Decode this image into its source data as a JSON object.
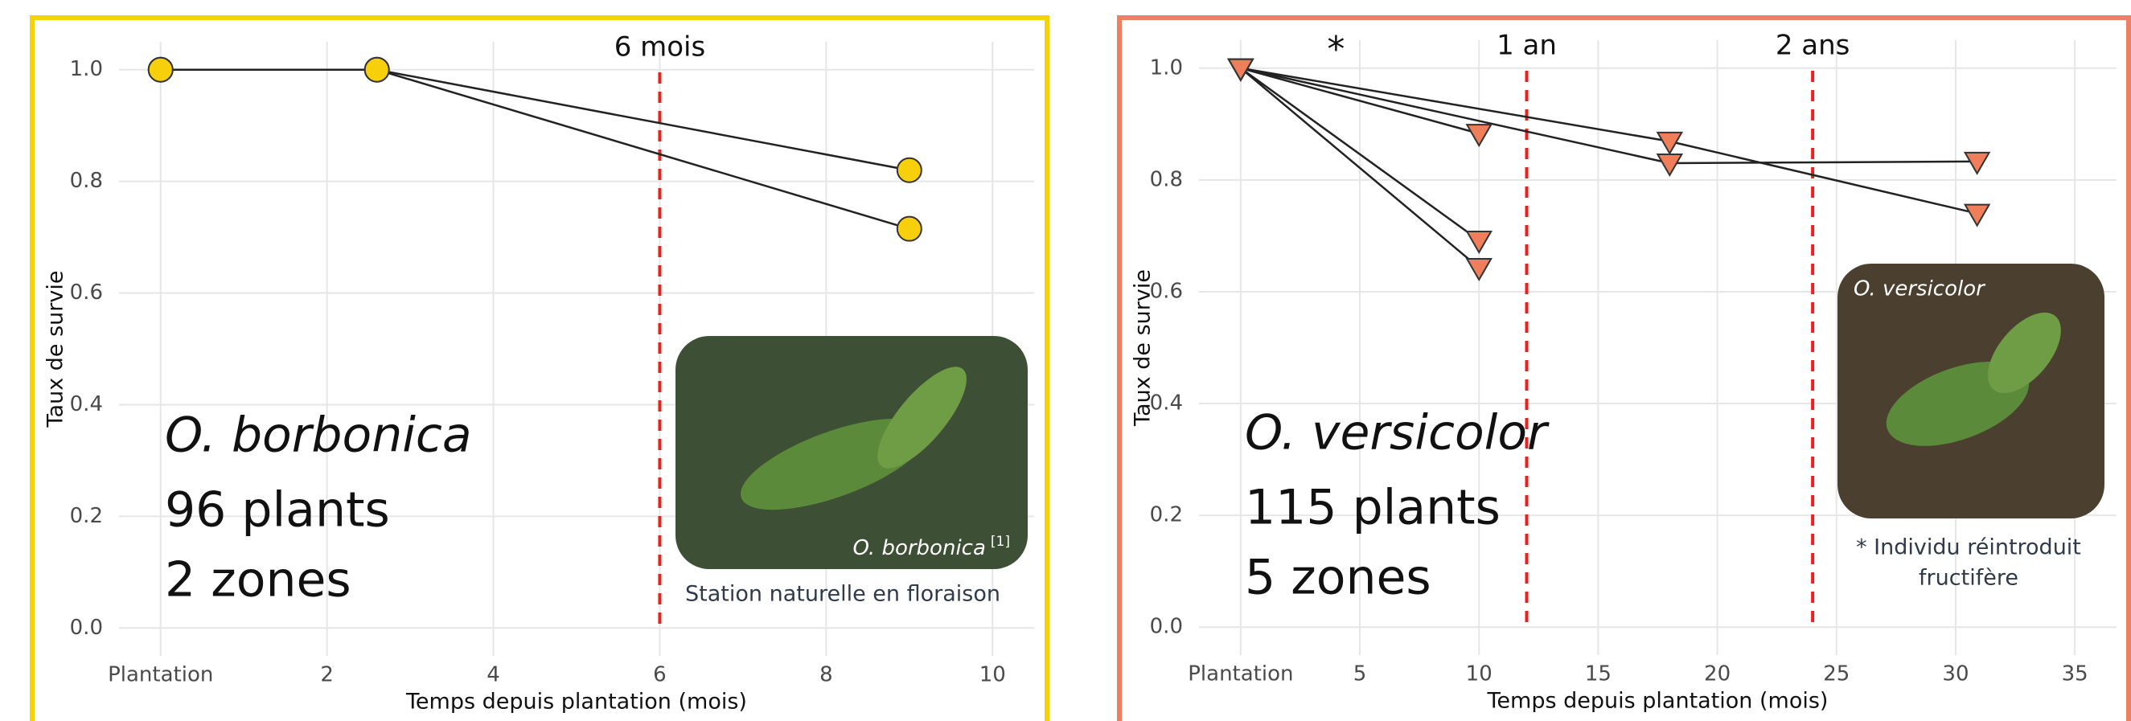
{
  "chart_data": [
    {
      "type": "line",
      "marker": "circle",
      "color": "#f7cf0b",
      "frame_color": "#f5d20a",
      "x_label": "Temps depuis plantation (mois)",
      "y_label": "Taux de survie",
      "xlim": [
        -0.5,
        10.5
      ],
      "xticks": [
        {
          "value": 0,
          "label": "Plantation"
        },
        2,
        4,
        6,
        8,
        10
      ],
      "ylim": [
        -0.05,
        1.05
      ],
      "yticks": [
        {
          "value": 0,
          "label": "0.0"
        },
        0.2,
        0.4,
        0.6,
        0.8,
        {
          "value": 1,
          "label": "1.0"
        }
      ],
      "grid": true,
      "series": [
        {
          "x": [
            0,
            2.6,
            9
          ],
          "values": [
            1,
            1,
            0.82
          ]
        },
        {
          "x": [
            0,
            2.6,
            9
          ],
          "values": [
            1,
            1,
            0.715
          ]
        }
      ],
      "vlines": [
        {
          "x": 6,
          "label": "6 mois",
          "color": "#e8231e"
        }
      ],
      "labels": {
        "species": "O. borbonica",
        "plants": "96 plants",
        "zones": "2 zones"
      },
      "photo": {
        "caption": "O. borbonica",
        "ref": "[1]",
        "note": [
          "Station naturelle en floraison"
        ]
      }
    },
    {
      "type": "line",
      "marker": "triangle",
      "color": "#ef7f5a",
      "frame_color": "#ec8060",
      "x_label": "Temps depuis plantation (mois)",
      "y_label": "Taux de survie",
      "xlim": [
        -1.75,
        36.75
      ],
      "xticks": [
        {
          "value": 0,
          "label": "Plantation"
        },
        5,
        10,
        15,
        20,
        25,
        30,
        35
      ],
      "ylim": [
        -0.05,
        1.05
      ],
      "yticks": [
        {
          "value": 0,
          "label": "0.0"
        },
        0.2,
        0.4,
        0.6,
        0.8,
        {
          "value": 1,
          "label": "1.0"
        }
      ],
      "grid": true,
      "series": [
        {
          "x": [
            0,
            10
          ],
          "values": [
            1,
            0.883
          ]
        },
        {
          "x": [
            0,
            10
          ],
          "values": [
            1,
            0.692
          ]
        },
        {
          "x": [
            0,
            10
          ],
          "values": [
            1,
            0.643
          ]
        },
        {
          "x": [
            0,
            18,
            30.9
          ],
          "values": [
            1,
            0.869,
            0.74
          ]
        },
        {
          "x": [
            0,
            18,
            30.9
          ],
          "values": [
            1,
            0.83,
            0.833
          ]
        }
      ],
      "vlines": [
        {
          "x": 12,
          "label": "1 an",
          "color": "#e8231e"
        },
        {
          "x": 24,
          "label": "2 ans",
          "color": "#e8231e"
        }
      ],
      "asterisk": {
        "x": 4,
        "text": "*"
      },
      "labels": {
        "species": "O. versicolor",
        "plants": "115 plants",
        "zones": "5 zones"
      },
      "photo": {
        "caption": "O. versicolor",
        "note": [
          "* Individu réintroduit",
          "fructifère"
        ]
      }
    }
  ]
}
